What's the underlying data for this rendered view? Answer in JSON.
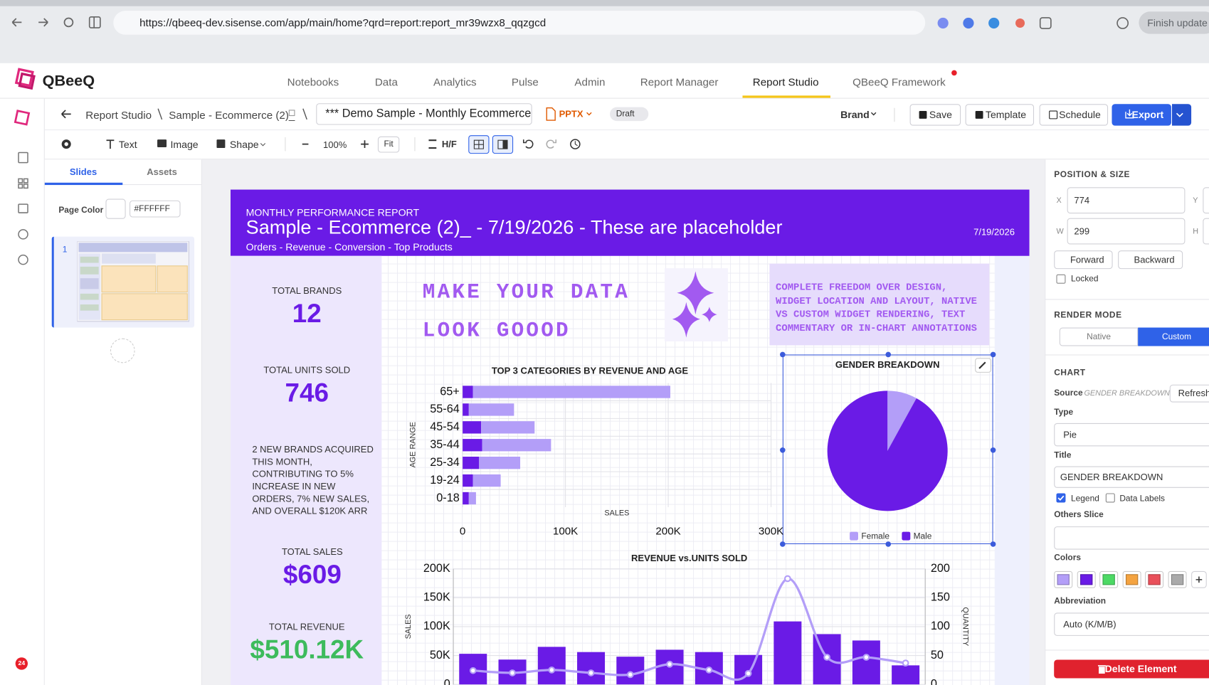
{
  "browser": {
    "url": "https://qbeeq-dev.sisense.com/app/main/home?qrd=report:report_mr39wzx8_qqzgcd",
    "update_button": "Finish update"
  },
  "app": {
    "logo": "QBeeQ",
    "nav": [
      "Notebooks",
      "Data",
      "Analytics",
      "Pulse",
      "Admin",
      "Report Manager",
      "Report Studio",
      "QBeeQ Framework"
    ],
    "notification_badge": "24"
  },
  "toolbar": {
    "breadcrumb": [
      "Report Studio",
      "Sample - Ecommerce (2)_"
    ],
    "document_title": "*** Demo Sample - Monthly Ecommerce P",
    "format": "PPTX",
    "status": "Draft",
    "brand": "Brand",
    "actions": [
      "Save",
      "Template",
      "Schedule",
      "Export"
    ]
  },
  "tools": {
    "text": "Text",
    "image": "Image",
    "shape": "Shape",
    "zoom": "100%",
    "fit": "Fit",
    "header_footer": "H/F"
  },
  "left_panel": {
    "tabs": [
      "Slides",
      "Assets"
    ],
    "page_color_label": "Page Color",
    "page_color": "#FFFFFF",
    "slide_number": "1"
  },
  "slide": {
    "kicker": "MONTHLY PERFORMANCE REPORT",
    "title": "Sample - Ecommerce (2)_ - 7/19/2026 - These are placeholder",
    "date": "7/19/2026",
    "subtitle": "Orders - Revenue - Conversion - Top Products",
    "kpis": [
      {
        "label": "TOTAL BRANDS",
        "value": "12"
      },
      {
        "label": "TOTAL UNITS SOLD",
        "value": "746"
      },
      {
        "label": "TOTAL SALES",
        "value": "$609"
      },
      {
        "label": "TOTAL REVENUE",
        "value": "$510.12K"
      }
    ],
    "note": "2 NEW BRANDS ACQUIRED THIS MONTH, CONTRIBUTING TO 5% INCREASE IN NEW ORDERS, 7% NEW SALES, AND OVERALL $120K ARR",
    "headline": "MAKE YOUR DATA LOOK GOOOD",
    "callout": "COMPLETE FREEDOM OVER DESIGN, WIDGET LOCATION AND LAYOUT, NATIVE VS CUSTOM WIDGET RENDERING, TEXT COMMENTARY OR IN-CHART ANNOTATIONS"
  },
  "right_panel": {
    "position_size": {
      "title": "POSITION & SIZE",
      "x_label": "X",
      "x": "774",
      "y_label": "Y",
      "w_label": "W",
      "w": "299",
      "h_label": "H",
      "buttons": [
        "Forward",
        "Backward"
      ],
      "locked": "Locked"
    },
    "render_mode": {
      "title": "RENDER MODE",
      "options": [
        "Native",
        "Custom"
      ]
    },
    "chart": {
      "title": "CHART",
      "source_label": "Source",
      "source": "GENDER BREAKDOWN",
      "refresh": "Refresh",
      "type_label": "Type",
      "type": "Pie",
      "title_label": "Title",
      "title_value": "GENDER BREAKDOWN",
      "legend": "Legend",
      "data_labels": "Data Labels",
      "others_slice": "Others Slice",
      "colors_label": "Colors",
      "colors": [
        "#b39ef8",
        "#6a1be6",
        "#4cd964",
        "#f4a340",
        "#e9505a",
        "#aaaaaa"
      ],
      "abbreviation_label": "Abbreviation",
      "abbreviation": "Auto (K/M/B)"
    },
    "delete": "Delete Element"
  },
  "chart_data": [
    {
      "type": "bar",
      "orientation": "horizontal",
      "stacked": true,
      "title": "TOP 3 CATEGORIES BY REVENUE AND AGE",
      "x_label": "SALES",
      "y_label": "AGE RANGE",
      "categories": [
        "65+",
        "55-64",
        "45-54",
        "35-44",
        "25-34",
        "19-24",
        "0-18"
      ],
      "series": [
        {
          "color": "#6a1be6",
          "values": [
            10000,
            6000,
            18000,
            19000,
            16000,
            10000,
            6000
          ]
        },
        {
          "color": "#b39ef8",
          "values": [
            192000,
            44000,
            52000,
            67000,
            40000,
            27000,
            7000
          ]
        }
      ],
      "xlim": [
        0,
        300000
      ],
      "xticks": [
        0,
        {
          "value": 100000,
          "label": "100K"
        },
        {
          "value": 200000,
          "label": "200K"
        },
        {
          "value": 300000,
          "label": "300K"
        }
      ],
      "grid": true
    },
    {
      "type": "pie",
      "title": "GENDER BREAKDOWN",
      "categories": [
        "Female",
        "Male"
      ],
      "values": [
        8,
        92
      ],
      "colors": [
        "#b39ef8",
        "#6a1be6"
      ],
      "legend": "bottom"
    },
    {
      "type": "combo",
      "title": "REVENUE vs.UNITS SOLD",
      "y_label": "SALES",
      "y2_label": "QUANTITY",
      "categories": [
        null,
        null,
        null,
        null,
        null,
        null,
        null,
        null,
        null,
        null,
        null,
        null
      ],
      "series": [
        {
          "type": "bar",
          "color": "#6a1be6",
          "values": [
            53000,
            43000,
            65000,
            56000,
            48000,
            60000,
            56000,
            51000,
            109000,
            87000,
            76000,
            33000
          ]
        },
        {
          "type": "line",
          "axis": "y2",
          "color": "#b39ef8",
          "values": [
            24,
            20,
            25,
            20,
            17,
            35,
            25,
            19,
            183,
            47,
            47,
            37
          ]
        }
      ],
      "ylim": [
        0,
        200000
      ],
      "yticks": [
        0,
        {
          "value": 50000,
          "label": "50K"
        },
        {
          "value": 100000,
          "label": "100K"
        },
        {
          "value": 150000,
          "label": "150K"
        },
        {
          "value": 200000,
          "label": "200K"
        }
      ],
      "y2lim": [
        0,
        200
      ],
      "y2ticks": [
        0,
        50,
        100,
        150,
        200
      ],
      "grid": true
    }
  ]
}
